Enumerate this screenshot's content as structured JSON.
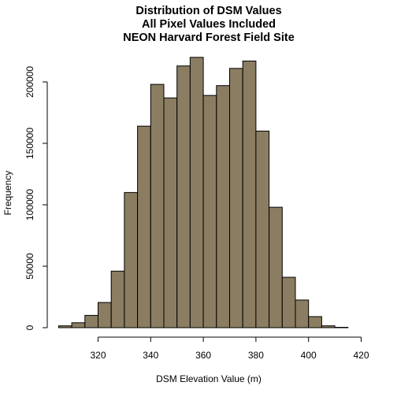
{
  "chart_data": {
    "type": "histogram",
    "title": [
      "Distribution of DSM Values",
      "All Pixel Values Included",
      "NEON Harvard Forest Field Site"
    ],
    "xlabel": "DSM Elevation Value (m)",
    "ylabel": "Frequency",
    "xlim": [
      305,
      420
    ],
    "ylim": [
      0,
      222000
    ],
    "x_ticks": [
      320,
      340,
      360,
      380,
      400,
      420
    ],
    "y_ticks": [
      0,
      50000,
      100000,
      150000,
      200000
    ],
    "bar_color": "#8B7D62",
    "bins": [
      {
        "start": 305,
        "end": 310,
        "count": 1500
      },
      {
        "start": 310,
        "end": 315,
        "count": 4000
      },
      {
        "start": 315,
        "end": 320,
        "count": 10000
      },
      {
        "start": 320,
        "end": 325,
        "count": 20500
      },
      {
        "start": 325,
        "end": 330,
        "count": 46000
      },
      {
        "start": 330,
        "end": 335,
        "count": 110000
      },
      {
        "start": 335,
        "end": 340,
        "count": 164000
      },
      {
        "start": 340,
        "end": 345,
        "count": 198000
      },
      {
        "start": 345,
        "end": 350,
        "count": 187000
      },
      {
        "start": 350,
        "end": 355,
        "count": 213000
      },
      {
        "start": 355,
        "end": 360,
        "count": 220000
      },
      {
        "start": 360,
        "end": 365,
        "count": 189000
      },
      {
        "start": 365,
        "end": 370,
        "count": 197000
      },
      {
        "start": 370,
        "end": 375,
        "count": 211000
      },
      {
        "start": 375,
        "end": 380,
        "count": 217000
      },
      {
        "start": 380,
        "end": 385,
        "count": 160000
      },
      {
        "start": 385,
        "end": 390,
        "count": 98000
      },
      {
        "start": 390,
        "end": 395,
        "count": 41000
      },
      {
        "start": 395,
        "end": 400,
        "count": 22500
      },
      {
        "start": 400,
        "end": 405,
        "count": 9000
      },
      {
        "start": 405,
        "end": 410,
        "count": 1500
      },
      {
        "start": 410,
        "end": 415,
        "count": 300
      }
    ]
  }
}
